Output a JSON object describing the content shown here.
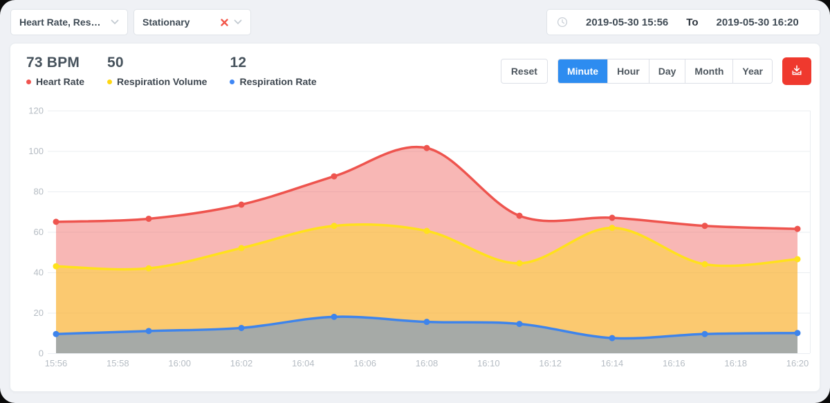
{
  "filters": {
    "metric_select": {
      "value": "Heart Rate, Respir…"
    },
    "activity_select": {
      "value": "Stationary"
    }
  },
  "date_range": {
    "start": "2019-05-30 15:56",
    "separator": "To",
    "end": "2019-05-30 16:20"
  },
  "stats": [
    {
      "value": "73 BPM",
      "label": "Heart Rate",
      "color": "#f0544f"
    },
    {
      "value": "50",
      "label": "Respiration Volume",
      "color": "#ffd712"
    },
    {
      "value": "12",
      "label": "Respiration Rate",
      "color": "#3f87f5"
    }
  ],
  "toolbar": {
    "reset_label": "Reset",
    "granularity": [
      {
        "label": "Minute",
        "active": true
      },
      {
        "label": "Hour",
        "active": false
      },
      {
        "label": "Day",
        "active": false
      },
      {
        "label": "Month",
        "active": false
      },
      {
        "label": "Year",
        "active": false
      }
    ],
    "export_icon": "download-icon",
    "accent_color": "#2d8cf0",
    "export_color": "#ef392e"
  },
  "chart_data": {
    "type": "area",
    "x_minutes": [
      0,
      3,
      6,
      9,
      12,
      15,
      18,
      21,
      24
    ],
    "categories": [
      "15:56",
      "15:59",
      "16:02",
      "16:05",
      "16:08",
      "16:11",
      "16:14",
      "16:17",
      "16:20"
    ],
    "series": [
      {
        "name": "Heart Rate",
        "color": "#ee544e",
        "fill": "rgba(238,84,78,0.42)",
        "values": [
          65,
          66.5,
          73.5,
          87.5,
          101.5,
          68,
          67,
          63,
          61.5
        ]
      },
      {
        "name": "Respiration Volume",
        "color": "#ffe11c",
        "fill": "rgba(255,225,28,0.45)",
        "values": [
          43,
          42,
          52,
          63,
          60.5,
          44.5,
          62,
          44,
          46.5
        ]
      },
      {
        "name": "Respiration Rate",
        "color": "#3e84eb",
        "fill": "rgba(62,132,235,0.45)",
        "values": [
          9.5,
          11,
          12.5,
          18,
          15.5,
          14.5,
          7.5,
          9.5,
          10
        ]
      }
    ],
    "xticks": [
      "15:56",
      "15:58",
      "16:00",
      "16:02",
      "16:04",
      "16:06",
      "16:08",
      "16:10",
      "16:12",
      "16:14",
      "16:16",
      "16:18",
      "16:20"
    ],
    "yticks": [
      0,
      20,
      40,
      60,
      80,
      100,
      120
    ],
    "ylim": [
      0,
      120
    ],
    "grid": true,
    "legend_position": "top-left-stats"
  }
}
